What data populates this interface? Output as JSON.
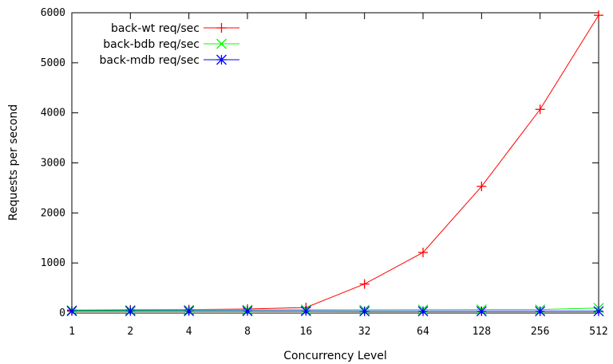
{
  "chart_data": {
    "type": "line",
    "xlabel": "Concurrency Level",
    "ylabel": "Requests per second",
    "categories": [
      "1",
      "2",
      "4",
      "8",
      "16",
      "32",
      "64",
      "128",
      "256",
      "512"
    ],
    "ylim": [
      0,
      6000
    ],
    "yticks": [
      "0",
      "1000",
      "2000",
      "3000",
      "4000",
      "5000",
      "6000"
    ],
    "x_scale": "log2",
    "grid": false,
    "legend_position": "top-left",
    "series": [
      {
        "name": "back-wt req/sec",
        "color": "#ff0000",
        "marker": "plus",
        "values": [
          60,
          65,
          70,
          80,
          110,
          580,
          1210,
          2530,
          4070,
          5950
        ]
      },
      {
        "name": "back-bdb req/sec",
        "color": "#00ff00",
        "marker": "x",
        "values": [
          55,
          58,
          62,
          65,
          68,
          65,
          68,
          70,
          70,
          100
        ]
      },
      {
        "name": "back-mdb req/sec",
        "color": "#0000ff",
        "marker": "star",
        "values": [
          40,
          40,
          40,
          40,
          40,
          35,
          35,
          35,
          35,
          35
        ]
      }
    ]
  }
}
